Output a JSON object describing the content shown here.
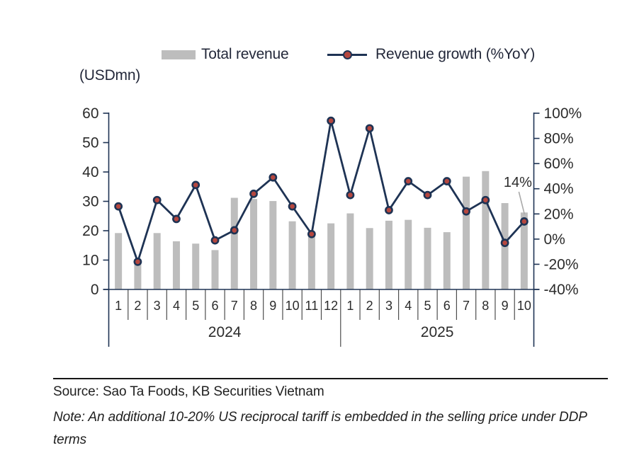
{
  "unit_label": "(USDmn)",
  "legend": {
    "bar_label": "Total revenue",
    "line_label": "Revenue growth (%YoY)"
  },
  "chart_data": {
    "type": "bar+line",
    "title": "",
    "categories": [
      "1",
      "2",
      "3",
      "4",
      "5",
      "6",
      "7",
      "8",
      "9",
      "10",
      "11",
      "12",
      "1",
      "2",
      "3",
      "4",
      "5",
      "6",
      "7",
      "8",
      "9",
      "10"
    ],
    "year_groups": [
      {
        "label": "2024",
        "span": 12
      },
      {
        "label": "2025",
        "span": 10
      }
    ],
    "series": [
      {
        "name": "Total revenue",
        "type": "bar",
        "axis": "left",
        "unit": "USDmn",
        "values": [
          19.2,
          10.3,
          19.2,
          16.4,
          15.6,
          13.4,
          31.2,
          30.8,
          30.1,
          23.2,
          19.4,
          22.5,
          25.9,
          20.9,
          23.4,
          23.7,
          21.0,
          19.5,
          38.4,
          40.3,
          29.4,
          26.2
        ]
      },
      {
        "name": "Revenue growth (%YoY)",
        "type": "line",
        "axis": "right",
        "unit": "%",
        "values": [
          26,
          -18,
          31,
          16,
          43,
          -1,
          7,
          36,
          49,
          26,
          4,
          94,
          35,
          88,
          23,
          46,
          35,
          46,
          22,
          31,
          -3,
          14
        ]
      }
    ],
    "left_axis": {
      "ticks": [
        0,
        10,
        20,
        30,
        40,
        50,
        60
      ],
      "range": [
        0,
        60
      ]
    },
    "right_axis": {
      "tick_labels": [
        "-40%",
        "-20%",
        "0%",
        "20%",
        "40%",
        "60%",
        "80%",
        "100%"
      ],
      "tick_values": [
        -40,
        -20,
        0,
        20,
        40,
        60,
        80,
        100
      ],
      "range": [
        -40,
        100
      ]
    },
    "annotation": {
      "text": "14%",
      "month_index": 21
    },
    "legend_position": "top",
    "grid": false
  },
  "colors": {
    "bar": "#BDBDBD",
    "line": "#1E3354",
    "marker_fill": "#B5473F",
    "axis": "#1E3354",
    "tick_text": "#2b2b2b",
    "separator": "#4d4d4d",
    "callout": "#A9A9A9"
  },
  "footer": {
    "source": "Source: Sao Ta Foods, KB Securities Vietnam",
    "note": "Note: An additional 10-20% US reciprocal tariff is embedded in the selling price under DDP terms"
  }
}
